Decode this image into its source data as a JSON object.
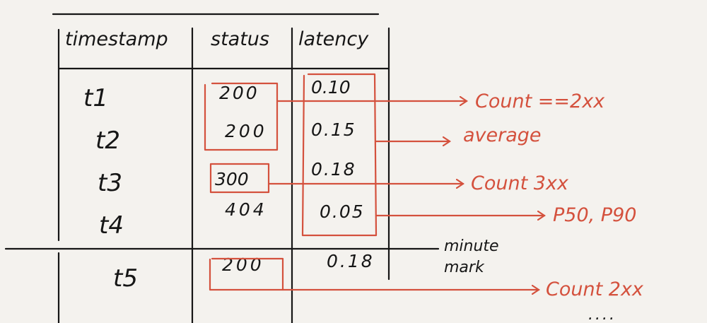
{
  "table": {
    "headers": [
      "timestamp",
      "status",
      "latency"
    ],
    "rows": [
      {
        "timestamp": "t1",
        "status": "200",
        "latency": "0.10"
      },
      {
        "timestamp": "t2",
        "status": "200",
        "latency": "0.15"
      },
      {
        "timestamp": "t3",
        "status": "300",
        "latency": "0.18"
      },
      {
        "timestamp": "t4",
        "status": "404",
        "latency": "0.05"
      },
      {
        "timestamp": "t5",
        "status": "200",
        "latency": "0.18"
      }
    ]
  },
  "divider_label": "minute mark",
  "annotations": {
    "count_2xx_first": "Count ==2xx",
    "average": "average",
    "count_3xx": "Count 3xx",
    "percentiles": "P50, P90",
    "count_2xx_next": "Count 2xx",
    "ellipsis": "...."
  },
  "colors": {
    "ink": "#161616",
    "annotation": "#d4513d",
    "background": "#f4f2ee"
  }
}
